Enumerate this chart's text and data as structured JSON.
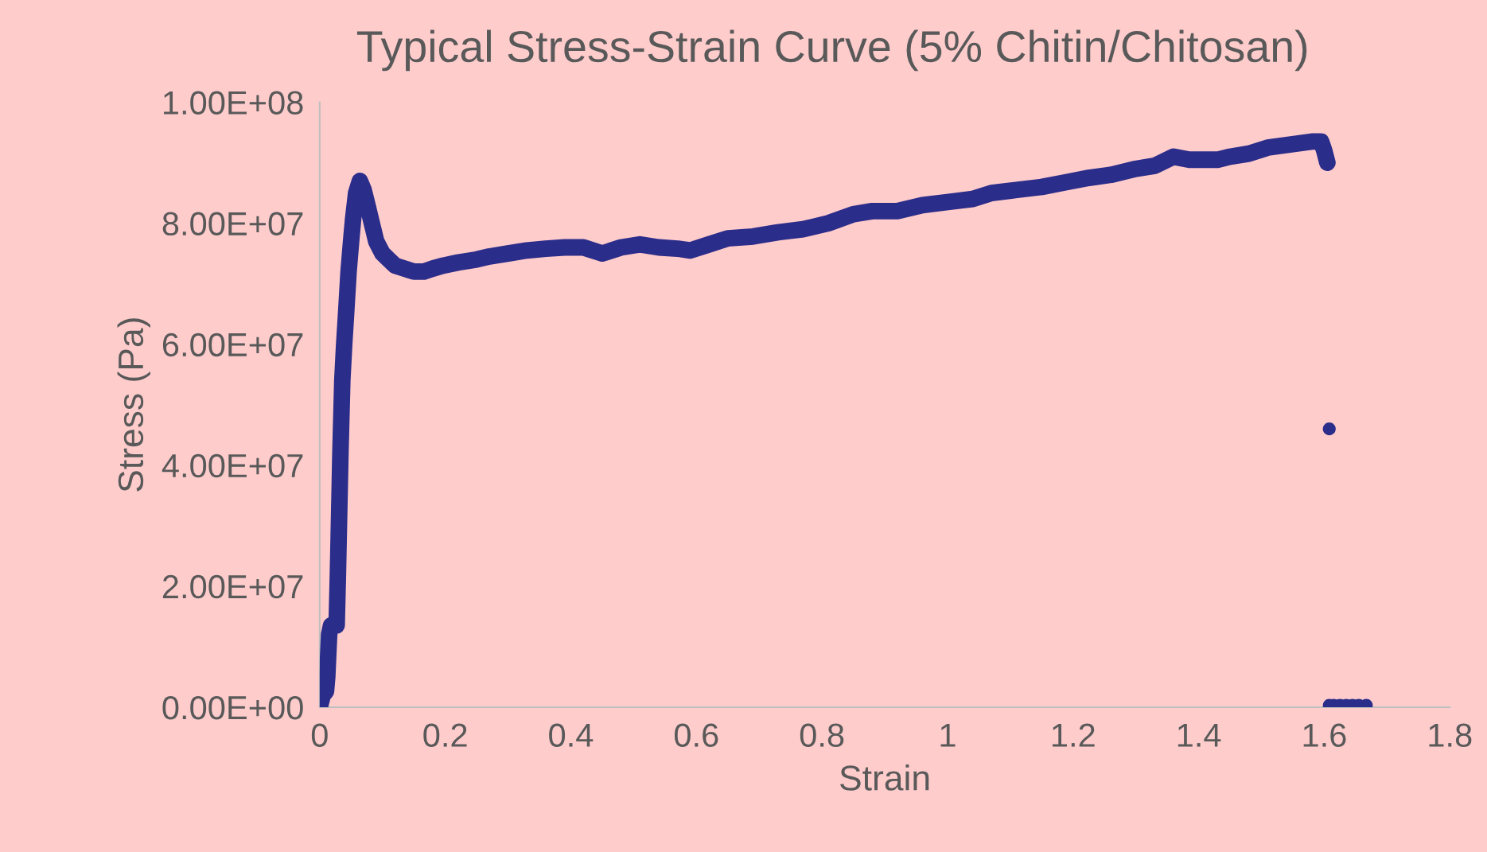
{
  "chart_data": {
    "type": "scatter",
    "title": "Typical Stress-Strain Curve (5% Chitin/Chitosan)",
    "xlabel": "Strain",
    "ylabel": "Stress (Pa)",
    "series": [
      {
        "type": "line",
        "marker": "none",
        "color": "#2b2d8a",
        "x": [
          0,
          0.005,
          0.01,
          0.012,
          0.015,
          0.018,
          0.022,
          0.027,
          0.029,
          0.031,
          0.033,
          0.036,
          0.039,
          0.042,
          0.046,
          0.05,
          0.053,
          0.058,
          0.064,
          0.07,
          0.076,
          0.083,
          0.09,
          0.1,
          0.11,
          0.12,
          0.135,
          0.15,
          0.166,
          0.18,
          0.197,
          0.22,
          0.25,
          0.27,
          0.3,
          0.33,
          0.36,
          0.39,
          0.42,
          0.45,
          0.48,
          0.51,
          0.54,
          0.57,
          0.59,
          0.62,
          0.65,
          0.69,
          0.73,
          0.77,
          0.81,
          0.85,
          0.88,
          0.92,
          0.96,
          1.0,
          1.04,
          1.07,
          1.11,
          1.15,
          1.19,
          1.225,
          1.26,
          1.3,
          1.33,
          1.36,
          1.385,
          1.41,
          1.43,
          1.45,
          1.48,
          1.51,
          1.545,
          1.58,
          1.595,
          1.6,
          1.605
        ],
        "values": [
          0,
          2000000,
          2600000,
          5000000,
          12000000,
          13500000,
          13500000,
          13500000,
          22000000,
          32000000,
          42000000,
          54000000,
          60000000,
          65000000,
          72000000,
          77000000,
          80500000,
          85000000,
          87000000,
          85500000,
          83000000,
          80000000,
          77000000,
          75000000,
          74000000,
          73000000,
          72500000,
          72000000,
          72000000,
          72500000,
          73000000,
          73500000,
          74000000,
          74500000,
          75000000,
          75500000,
          75800000,
          76000000,
          76000000,
          75000000,
          76000000,
          76500000,
          76000000,
          75800000,
          75500000,
          76500000,
          77500000,
          77800000,
          78500000,
          79000000,
          80000000,
          81500000,
          82000000,
          82000000,
          83000000,
          83500000,
          84000000,
          85000000,
          85500000,
          86000000,
          86800000,
          87500000,
          88000000,
          89000000,
          89500000,
          91000000,
          90500000,
          90500000,
          90500000,
          91000000,
          91500000,
          92500000,
          93000000,
          93500000,
          93500000,
          92000000,
          90000000
        ]
      },
      {
        "color": "#2b2d8a",
        "x": [
          1.608,
          1.608,
          1.615,
          1.625,
          1.635,
          1.645,
          1.655,
          1.667
        ],
        "values": [
          46000000,
          300000,
          300000,
          300000,
          300000,
          300000,
          300000,
          300000
        ]
      }
    ],
    "marker": "circle",
    "xlim": [
      0,
      1.8
    ],
    "xticks": [
      0,
      0.2,
      0.4,
      0.6,
      0.8,
      1,
      1.2,
      1.4,
      1.6,
      1.8
    ],
    "ylim": [
      0,
      100000000
    ],
    "yticks": [
      {
        "value": 0,
        "label": "0.00E+00"
      },
      {
        "value": 20000000,
        "label": "2.00E+07"
      },
      {
        "value": 40000000,
        "label": "4.00E+07"
      },
      {
        "value": 60000000,
        "label": "6.00E+07"
      },
      {
        "value": 80000000,
        "label": "8.00E+07"
      },
      {
        "value": 100000000,
        "label": "1.00E+08"
      }
    ],
    "grid": false,
    "legend": false
  }
}
